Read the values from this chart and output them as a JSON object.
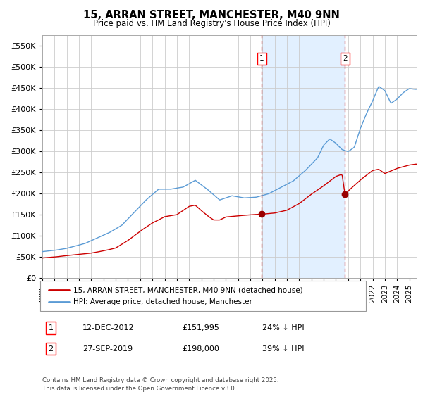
{
  "title": "15, ARRAN STREET, MANCHESTER, M40 9NN",
  "subtitle": "Price paid vs. HM Land Registry's House Price Index (HPI)",
  "ylim": [
    0,
    575000
  ],
  "yticks": [
    0,
    50000,
    100000,
    150000,
    200000,
    250000,
    300000,
    350000,
    400000,
    450000,
    500000,
    550000
  ],
  "hpi_color": "#5b9bd5",
  "price_color": "#cc0000",
  "marker_color": "#990000",
  "vline_color": "#cc0000",
  "bg_color": "#ffffff",
  "grid_color": "#cccccc",
  "shade_color": "#ddeeff",
  "legend_label_price": "15, ARRAN STREET, MANCHESTER, M40 9NN (detached house)",
  "legend_label_hpi": "HPI: Average price, detached house, Manchester",
  "annotation1_label": "1",
  "annotation1_date": "12-DEC-2012",
  "annotation1_price": "£151,995",
  "annotation1_hpi": "24% ↓ HPI",
  "annotation2_label": "2",
  "annotation2_date": "27-SEP-2019",
  "annotation2_price": "£198,000",
  "annotation2_hpi": "39% ↓ HPI",
  "footer": "Contains HM Land Registry data © Crown copyright and database right 2025.\nThis data is licensed under the Open Government Licence v3.0.",
  "marker1_year": 2012.95,
  "marker1_value": 151995,
  "marker2_year": 2019.75,
  "marker2_value": 198000,
  "vline1_year": 2012.95,
  "vline2_year": 2019.75,
  "hpi_checkpoints_x": [
    1995.0,
    1996.0,
    1997.0,
    1997.5,
    1998.5,
    1999.5,
    2000.5,
    2001.5,
    2002.5,
    2003.5,
    2004.5,
    2005.5,
    2006.5,
    2007.5,
    2008.5,
    2009.5,
    2010.5,
    2011.5,
    2012.5,
    2013.5,
    2014.5,
    2015.5,
    2016.5,
    2017.5,
    2018.0,
    2018.5,
    2019.0,
    2019.5,
    2020.0,
    2020.5,
    2021.0,
    2021.5,
    2022.0,
    2022.5,
    2023.0,
    2023.5,
    2024.0,
    2024.5,
    2025.0,
    2025.5
  ],
  "hpi_checkpoints_y": [
    62000,
    65000,
    70000,
    74000,
    82000,
    95000,
    108000,
    125000,
    155000,
    185000,
    210000,
    210000,
    215000,
    232000,
    210000,
    185000,
    195000,
    190000,
    192000,
    200000,
    215000,
    230000,
    255000,
    285000,
    315000,
    330000,
    320000,
    305000,
    300000,
    310000,
    355000,
    390000,
    420000,
    455000,
    445000,
    415000,
    425000,
    440000,
    450000,
    448000
  ],
  "price_checkpoints_x": [
    1995.0,
    1996.0,
    1997.0,
    1998.0,
    1999.0,
    2000.0,
    2001.0,
    2002.0,
    2003.0,
    2004.0,
    2005.0,
    2006.0,
    2007.0,
    2007.5,
    2008.0,
    2008.5,
    2009.0,
    2009.5,
    2010.0,
    2011.0,
    2012.0,
    2012.95,
    2013.0,
    2014.0,
    2015.0,
    2016.0,
    2017.0,
    2018.0,
    2019.0,
    2019.5,
    2019.75,
    2020.0,
    2021.0,
    2022.0,
    2022.5,
    2023.0,
    2024.0,
    2025.0,
    2025.5
  ],
  "price_checkpoints_y": [
    47000,
    49000,
    52000,
    55000,
    58000,
    63000,
    70000,
    88000,
    110000,
    130000,
    145000,
    150000,
    170000,
    173000,
    160000,
    148000,
    138000,
    138000,
    145000,
    148000,
    150000,
    151995,
    152000,
    155000,
    162000,
    178000,
    200000,
    220000,
    242000,
    247000,
    198000,
    207000,
    233000,
    255000,
    258000,
    248000,
    260000,
    268000,
    270000
  ]
}
